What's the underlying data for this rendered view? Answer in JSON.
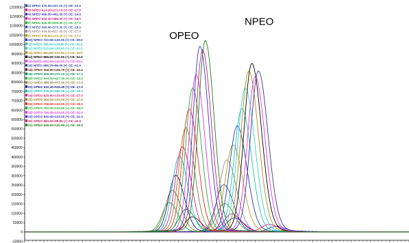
{
  "chart_data": {
    "type": "line",
    "ylim": [
      -55000,
      1220000
    ],
    "xlim": [
      0,
      100
    ],
    "y_ticks": [
      -50000,
      0,
      50000,
      100000,
      150000,
      200000,
      250000,
      300000,
      350000,
      400000,
      450000,
      500000,
      550000,
      600000,
      650000,
      700000,
      750000,
      800000,
      850000,
      900000,
      950000,
      1000000,
      1050000,
      1100000,
      1150000,
      1200000
    ],
    "grid": false,
    "legend_position": "top-left",
    "annotations": [
      {
        "text": "OPEO",
        "x": 41.5,
        "y": 1030000
      },
      {
        "text": "NPEO",
        "x": 61.0,
        "y": 1105000
      }
    ],
    "series": [
      {
        "name": "2) NPEO 370.30>227.10 (+) CE:-12.0",
        "color": "#1f3ea8",
        "group": "NPEO",
        "peak_x": 65.4,
        "peak_y": 30000,
        "width": 2.0
      },
      {
        "name": "3) NPEO 414.20>271.15 (+) CE:-17.0",
        "color": "#e0157a",
        "group": "NPEO",
        "peak_x": 63.6,
        "peak_y": 40000,
        "width": 2.0
      },
      {
        "name": "4) NPEO 458.30>441.35 (+) CE:-14.0",
        "color": "#3a2ccc",
        "group": "NPEO",
        "peak_x": 54.5,
        "peak_y": 75000,
        "width": 2.0
      },
      {
        "name": "5) NPEO 502.40>485.30 (+) CE:-16.0",
        "color": "#c9158a",
        "group": "NPEO",
        "peak_x": 53.8,
        "peak_y": 95000,
        "width": 2.0
      },
      {
        "name": "6) NPEO 546.40>529.35 (+) CE:-17.0",
        "color": "#22aa33",
        "group": "NPEO",
        "peak_x": 52.0,
        "peak_y": 150000,
        "width": 2.0
      },
      {
        "name": "7) NPEO 590.40>573.35 (+) CE:-18.0",
        "color": "#3d4a9c",
        "group": "NPEO",
        "peak_x": 51.8,
        "peak_y": 250000,
        "width": 2.0
      },
      {
        "name": "8) NPEO 634.50>617.35 (+) CE:-27.0",
        "color": "#9a8a8a",
        "group": "NPEO",
        "peak_x": 52.6,
        "peak_y": 380000,
        "width": 2.0
      },
      {
        "name": "9) NPEO 678.50>133.05 (+) CE:-27.0",
        "color": "#b59a2a",
        "group": "NPEO",
        "peak_x": 54.2,
        "peak_y": 460000,
        "width": 2.0
      },
      {
        "name": "10) NPEO 722.50>133.05 (+) CE:-29.0",
        "color": "#1f3ea8",
        "group": "NPEO",
        "peak_x": 55.3,
        "peak_y": 560000,
        "width": 2.0
      },
      {
        "name": "11) NPEO 766.50>133.00 (+) CE:-31.0",
        "color": "#22bbbb",
        "group": "NPEO",
        "peak_x": 56.5,
        "peak_y": 650000,
        "width": 2.0
      },
      {
        "name": "12) NPEO 810.60>133.00 (+) CE:-21.0",
        "color": "#33cccc",
        "group": "NPEO",
        "peak_x": 57.4,
        "peak_y": 760000,
        "width": 2.0
      },
      {
        "name": "13) NPEO 854.60>133.05 (+) CE:-33.0",
        "color": "#b08a1a",
        "group": "NPEO",
        "peak_x": 58.3,
        "peak_y": 850000,
        "width": 2.0
      },
      {
        "name": "14) NPEO 898.60>133.05 (+) CE:-34.0",
        "color": "#000000",
        "group": "NPEO",
        "peak_x": 59.1,
        "peak_y": 890000,
        "width": 2.0
      },
      {
        "name": "15) NPEO 942.60>133.05 (+) CE:-35.0",
        "color": "#e033e0",
        "group": "NPEO",
        "peak_x": 60.0,
        "peak_y": 820000,
        "width": 2.0
      },
      {
        "name": "16) NPEO 986.70>89.00 (+) CE:-42.0",
        "color": "#333399",
        "group": "NPEO",
        "peak_x": 60.8,
        "peak_y": 850000,
        "width": 2.0
      },
      {
        "name": "18) OPEO 356.30>226.70 (+) CE:-15.0",
        "color": "#5a1a1a",
        "group": "OPEO",
        "peak_x": 43.6,
        "peak_y": 80000,
        "width": 1.8
      },
      {
        "name": "19) OPEO 400.30>271.10 (+) CE:-17.0",
        "color": "#008b5a",
        "group": "OPEO",
        "peak_x": 42.0,
        "peak_y": 120000,
        "width": 1.8
      },
      {
        "name": "20) OPEO 444.30>427.30 (+) CE:-15.0",
        "color": "#22aa33",
        "group": "OPEO",
        "peak_x": 37.6,
        "peak_y": 155000,
        "width": 1.8
      },
      {
        "name": "21) OPEO 488.40>471.30 (+) CE:-17.0",
        "color": "#8a7a2a",
        "group": "OPEO",
        "peak_x": 38.4,
        "peak_y": 220000,
        "width": 1.8
      },
      {
        "name": "22) OPEO 532.40>515.40 (+) CE:-17.0",
        "color": "#0a1a88",
        "group": "OPEO",
        "peak_x": 39.3,
        "peak_y": 300000,
        "width": 1.8
      },
      {
        "name": "23) OPEO 576.40>559.35 (+) CE:-19.0",
        "color": "#22bbbb",
        "group": "OPEO",
        "peak_x": 40.2,
        "peak_y": 400000,
        "width": 1.8
      },
      {
        "name": "24) OPEO 620.40>133.05 (+) CE:-27.0",
        "color": "#e0157a",
        "group": "OPEO",
        "peak_x": 41.0,
        "peak_y": 450000,
        "width": 1.8
      },
      {
        "name": "25) OPEO 664.50>133.05 (+) CE:-27.0",
        "color": "#8a7a2a",
        "group": "OPEO",
        "peak_x": 41.9,
        "peak_y": 550000,
        "width": 1.8
      },
      {
        "name": "26) OPEO 708.50>133.05 (+) CE:-29.0",
        "color": "#e02a1a",
        "group": "OPEO",
        "peak_x": 42.8,
        "peak_y": 650000,
        "width": 1.8
      },
      {
        "name": "27) OPEO 752.50>133.00 (+) CE:-30.0",
        "color": "#22aa33",
        "group": "OPEO",
        "peak_x": 43.7,
        "peak_y": 760000,
        "width": 1.8
      },
      {
        "name": "28) OPEO 796.50>133.05 (+) CE:-32.0",
        "color": "#e033e0",
        "group": "OPEO",
        "peak_x": 44.6,
        "peak_y": 830000,
        "width": 1.8
      },
      {
        "name": "29) OPEO 840.60>133.05 (+) CE:-32.0",
        "color": "#3a2ccc",
        "group": "OPEO",
        "peak_x": 45.6,
        "peak_y": 980000,
        "width": 1.8
      },
      {
        "name": "30) OPEO 884.60>89.05 (+) CE:-42.0",
        "color": "#c02070",
        "group": "OPEO",
        "peak_x": 46.3,
        "peak_y": 960000,
        "width": 1.8
      },
      {
        "name": "31) OPEO 928.60>132.95 (+) CE:-36.0",
        "color": "#1a7a1a",
        "group": "OPEO",
        "peak_x": 47.0,
        "peak_y": 1010000,
        "width": 1.8
      }
    ]
  }
}
